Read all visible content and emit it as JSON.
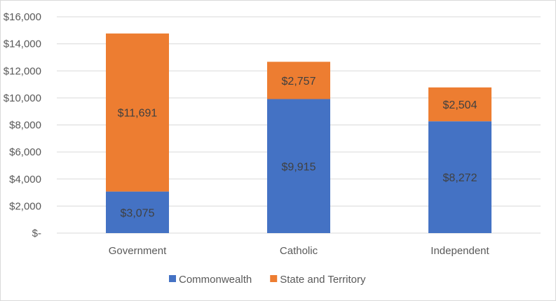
{
  "chart_data": {
    "type": "bar",
    "stacked": true,
    "categories": [
      "Government",
      "Catholic",
      "Independent"
    ],
    "series": [
      {
        "name": "Commonwealth",
        "color": "#4472c4",
        "values": [
          3075,
          9915,
          8272
        ],
        "labels": [
          "$3,075",
          "$9,915",
          "$8,272"
        ]
      },
      {
        "name": "State and Territory",
        "color": "#ed7d31",
        "values": [
          11691,
          2757,
          2504
        ],
        "labels": [
          "$11,691",
          "$2,757",
          "$2,504"
        ]
      }
    ],
    "ylim": [
      0,
      16000
    ],
    "yticks": [
      0,
      2000,
      4000,
      6000,
      8000,
      10000,
      12000,
      14000,
      16000
    ],
    "ytick_labels": [
      "$-",
      "$2,000",
      "$4,000",
      "$6,000",
      "$8,000",
      "$10,000",
      "$12,000",
      "$14,000",
      "$16,000"
    ],
    "grid": true,
    "legend_position": "bottom"
  }
}
